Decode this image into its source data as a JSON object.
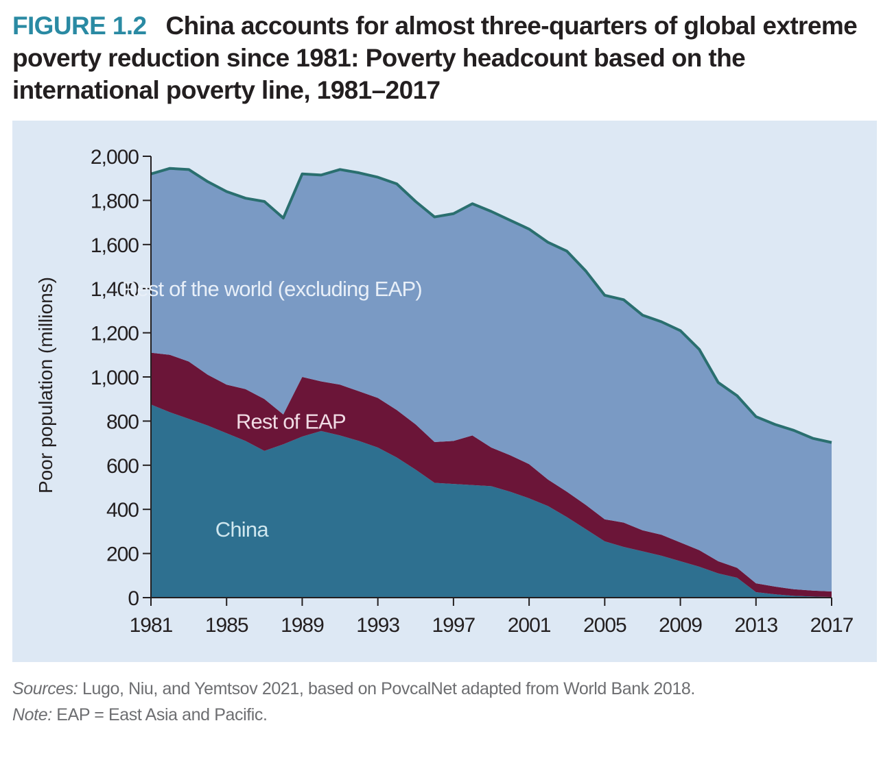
{
  "figure": {
    "label": "FIGURE 1.2",
    "title": "China accounts for almost three-quarters of global extreme poverty reduction since 1981: Poverty headcount based on the international poverty line, 1981–2017"
  },
  "colors": {
    "title_label": "#2a8aa3",
    "panel_bg": "#dde8f4",
    "china": "#2e7090",
    "rest_eap": "#6b1538",
    "rest_world": "#7a9ac4",
    "total_line": "#2a6f6f"
  },
  "chart_data": {
    "type": "area",
    "stacked": true,
    "ylabel": "Poor population (millions)",
    "xlabel": "",
    "ylim": [
      0,
      2000
    ],
    "yticks": [
      0,
      200,
      400,
      600,
      800,
      1000,
      1200,
      1400,
      1600,
      1800,
      2000
    ],
    "ytick_labels": [
      "0",
      "200",
      "400",
      "600",
      "800",
      "1,000",
      "1,200",
      "1,400",
      "1,600",
      "1,800",
      "2,000"
    ],
    "xlim": [
      1981,
      2017
    ],
    "xticks": [
      1981,
      1985,
      1989,
      1993,
      1997,
      2001,
      2005,
      2009,
      2013,
      2017
    ],
    "x": [
      1981,
      1982,
      1983,
      1984,
      1985,
      1986,
      1987,
      1988,
      1989,
      1990,
      1991,
      1992,
      1993,
      1994,
      1995,
      1996,
      1997,
      1998,
      1999,
      2000,
      2001,
      2002,
      2003,
      2004,
      2005,
      2006,
      2007,
      2008,
      2009,
      2010,
      2011,
      2012,
      2013,
      2014,
      2015,
      2016,
      2017
    ],
    "series": [
      {
        "name": "China",
        "values": [
          875,
          840,
          810,
          780,
          745,
          710,
          665,
          695,
          730,
          755,
          735,
          710,
          680,
          635,
          580,
          520,
          515,
          510,
          505,
          480,
          450,
          415,
          365,
          310,
          255,
          230,
          210,
          190,
          165,
          140,
          110,
          90,
          25,
          15,
          8,
          5,
          3
        ]
      },
      {
        "name": "Rest of EAP",
        "values": [
          235,
          260,
          260,
          230,
          220,
          235,
          235,
          135,
          270,
          225,
          230,
          225,
          225,
          215,
          205,
          185,
          195,
          225,
          175,
          165,
          155,
          120,
          115,
          110,
          100,
          110,
          95,
          95,
          85,
          75,
          55,
          45,
          40,
          35,
          30,
          27,
          25
        ]
      },
      {
        "name": "Rest of the  world (excluding EAP)",
        "values": [
          810,
          845,
          870,
          875,
          875,
          865,
          895,
          890,
          920,
          935,
          975,
          990,
          1000,
          1025,
          1010,
          1020,
          1030,
          1050,
          1070,
          1065,
          1065,
          1075,
          1090,
          1060,
          1015,
          1010,
          975,
          965,
          960,
          910,
          810,
          780,
          755,
          735,
          720,
          690,
          675
        ]
      }
    ]
  },
  "sources": {
    "label": "Sources:",
    "text": " Lugo, Niu, and Yemtsov 2021, based on PovcalNet adapted from World Bank 2018."
  },
  "note": {
    "label": "Note:",
    "text": " EAP = East Asia and Pacific."
  }
}
